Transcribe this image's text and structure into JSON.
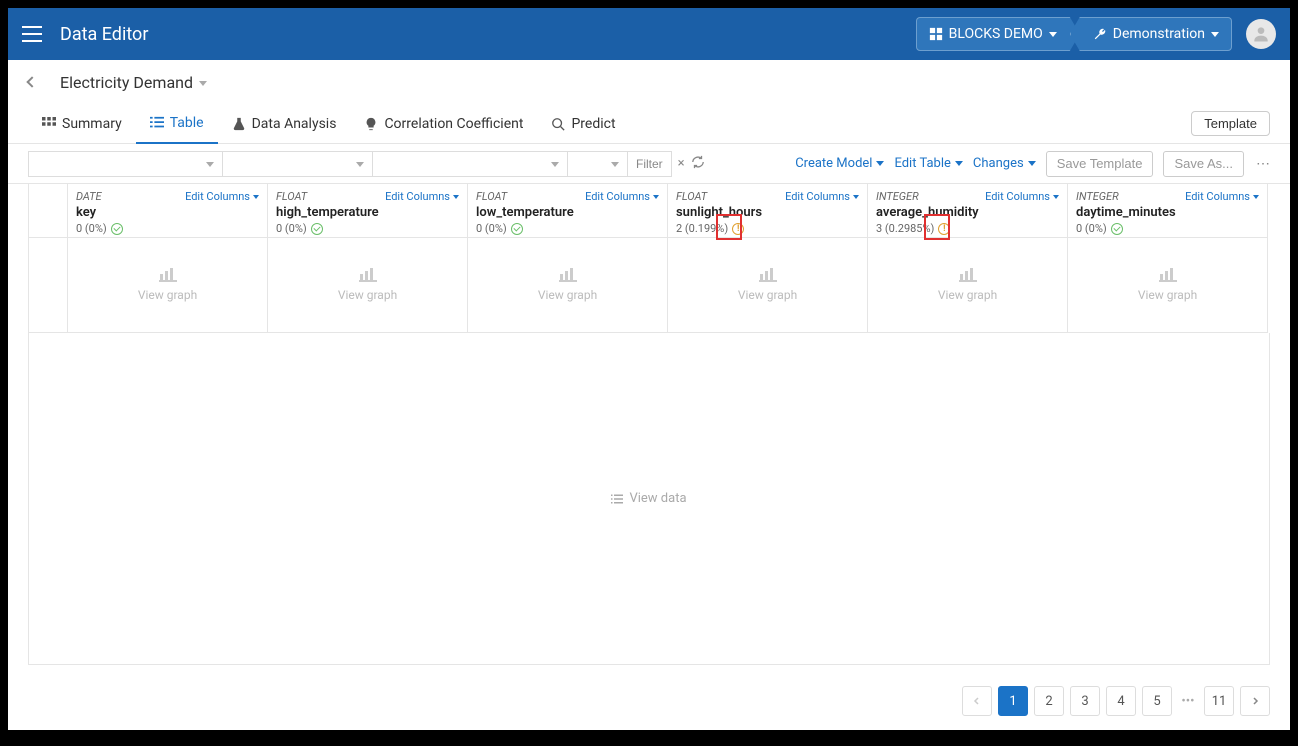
{
  "topbar": {
    "title": "Data Editor",
    "left_pill": "BLOCKS DEMO",
    "right_pill": "Demonstration"
  },
  "subheader": {
    "title": "Electricity Demand"
  },
  "tabs": {
    "summary": "Summary",
    "table": "Table",
    "analysis": "Data Analysis",
    "corr": "Correlation Coefficient",
    "predict": "Predict",
    "template_btn": "Template"
  },
  "toolbar": {
    "filter": "Filter",
    "create_model": "Create Model",
    "edit_table": "Edit Table",
    "changes": "Changes",
    "save_template": "Save Template",
    "save_as": "Save As..."
  },
  "columns": [
    {
      "type": "DATE",
      "name": "key",
      "stat": "0 (0%)",
      "status": "ok",
      "edit": "Edit Columns"
    },
    {
      "type": "FLOAT",
      "name": "high_temperature",
      "stat": "0 (0%)",
      "status": "ok",
      "edit": "Edit Columns"
    },
    {
      "type": "FLOAT",
      "name": "low_temperature",
      "stat": "0 (0%)",
      "status": "ok",
      "edit": "Edit Columns"
    },
    {
      "type": "FLOAT",
      "name": "sunlight_hours",
      "stat": "2 (0.199%)",
      "status": "warn",
      "edit": "Edit Columns",
      "highlight": true
    },
    {
      "type": "INTEGER",
      "name": "average_humidity",
      "stat": "3 (0.2985%)",
      "status": "warn",
      "edit": "Edit Columns",
      "highlight": true
    },
    {
      "type": "INTEGER",
      "name": "daytime_minutes",
      "stat": "0 (0%)",
      "status": "ok",
      "edit": "Edit Columns"
    }
  ],
  "view_graph_label": "View graph",
  "view_data_label": "View data",
  "pagination": {
    "pages": [
      "1",
      "2",
      "3",
      "4",
      "5",
      "11"
    ],
    "active": "1"
  },
  "colors": {
    "header_bg": "#1b5fa7",
    "accent": "#1b73c7",
    "warn": "#e0a030",
    "ok": "#6abf69",
    "highlight_border": "#e03030"
  }
}
